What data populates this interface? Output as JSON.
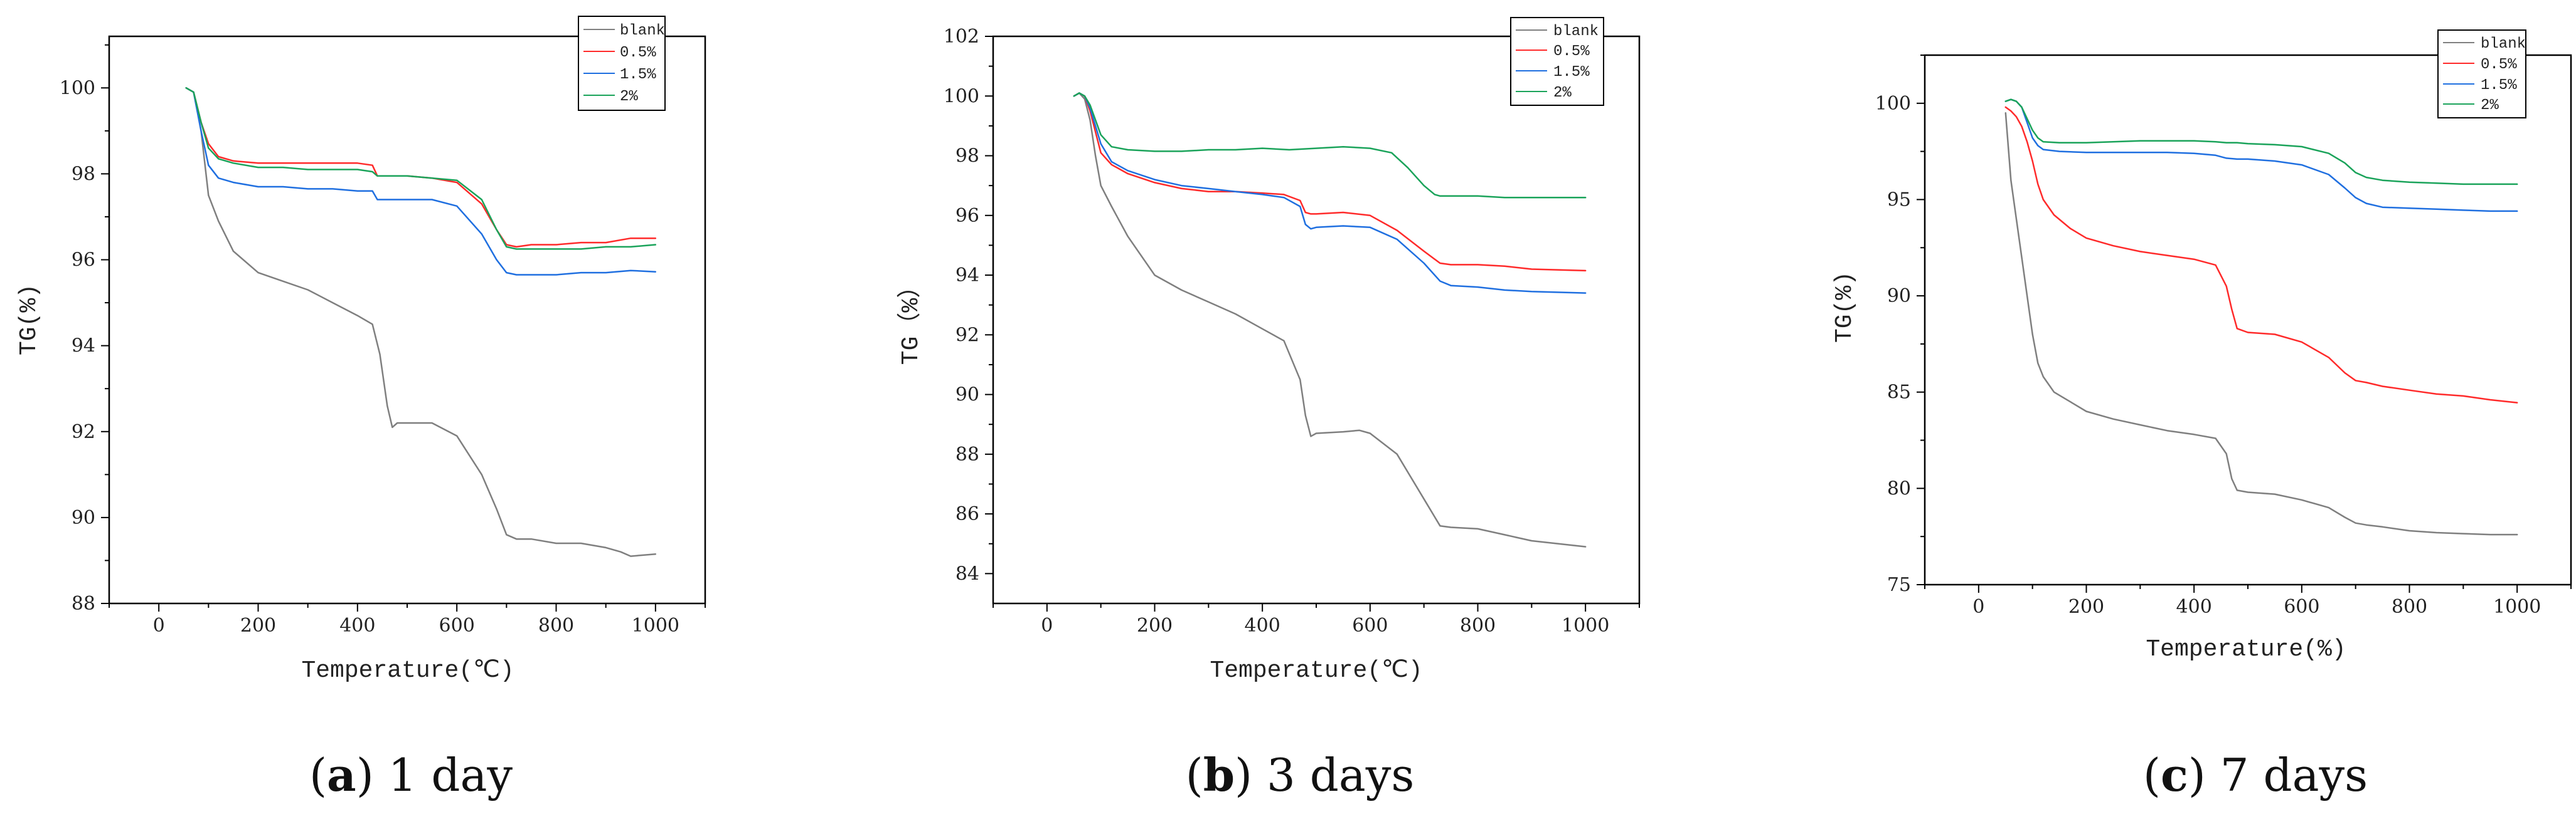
{
  "charts": [
    {
      "caption_letter": "a",
      "caption_text": " 1 day",
      "type": "line",
      "xlabel": "Temperature(℃)",
      "ylabel": "TG(%)",
      "xlim": [
        -100,
        1100
      ],
      "ylim": [
        88,
        101.2
      ],
      "xticks": [
        0,
        200,
        400,
        600,
        800,
        1000
      ],
      "xtick_labels": [
        "0",
        "200",
        "400",
        "600",
        "800",
        "1000"
      ],
      "yticks": [
        88,
        90,
        92,
        94,
        96,
        98,
        100
      ],
      "ytick_labels": [
        "88",
        "90",
        "92",
        "94",
        "96",
        "98",
        "100"
      ],
      "legend": {
        "position": "top-right",
        "labels": [
          "blank",
          "0.5%",
          "1.5%",
          "2%"
        ]
      },
      "series": [
        {
          "name": "blank",
          "color": "#7f7f7f",
          "x": [
            55,
            70,
            85,
            100,
            120,
            150,
            200,
            250,
            300,
            350,
            400,
            430,
            445,
            460,
            470,
            480,
            500,
            550,
            600,
            650,
            680,
            700,
            720,
            750,
            800,
            850,
            900,
            930,
            950,
            1000
          ],
          "y": [
            100,
            99.9,
            99,
            97.5,
            96.9,
            96.2,
            95.7,
            95.5,
            95.3,
            95.0,
            94.7,
            94.5,
            93.8,
            92.6,
            92.1,
            92.2,
            92.2,
            92.2,
            91.9,
            91.0,
            90.2,
            89.6,
            89.5,
            89.5,
            89.4,
            89.4,
            89.3,
            89.2,
            89.1,
            89.15
          ]
        },
        {
          "name": "0.5%",
          "color": "#ff2a2a",
          "x": [
            55,
            70,
            85,
            100,
            120,
            150,
            200,
            250,
            300,
            350,
            400,
            430,
            440,
            460,
            500,
            550,
            600,
            650,
            680,
            700,
            720,
            750,
            800,
            850,
            900,
            950,
            1000
          ],
          "y": [
            100,
            99.9,
            99.2,
            98.7,
            98.4,
            98.3,
            98.25,
            98.25,
            98.25,
            98.25,
            98.25,
            98.2,
            97.95,
            97.95,
            97.95,
            97.9,
            97.8,
            97.3,
            96.7,
            96.35,
            96.3,
            96.35,
            96.35,
            96.4,
            96.4,
            96.5,
            96.5
          ]
        },
        {
          "name": "1.5%",
          "color": "#1f6fe0",
          "x": [
            55,
            70,
            85,
            100,
            120,
            150,
            200,
            250,
            300,
            350,
            400,
            430,
            440,
            460,
            500,
            550,
            600,
            650,
            680,
            700,
            720,
            750,
            800,
            850,
            900,
            950,
            1000
          ],
          "y": [
            100,
            99.9,
            99.0,
            98.2,
            97.9,
            97.8,
            97.7,
            97.7,
            97.65,
            97.65,
            97.6,
            97.6,
            97.4,
            97.4,
            97.4,
            97.4,
            97.25,
            96.6,
            96.0,
            95.7,
            95.65,
            95.65,
            95.65,
            95.7,
            95.7,
            95.75,
            95.72
          ]
        },
        {
          "name": "2%",
          "color": "#1aa35a",
          "x": [
            55,
            70,
            85,
            100,
            120,
            150,
            200,
            250,
            300,
            350,
            400,
            430,
            440,
            460,
            500,
            550,
            600,
            650,
            680,
            700,
            720,
            750,
            800,
            850,
            900,
            950,
            1000
          ],
          "y": [
            100,
            99.9,
            99.2,
            98.6,
            98.35,
            98.25,
            98.15,
            98.15,
            98.1,
            98.1,
            98.1,
            98.05,
            97.95,
            97.95,
            97.95,
            97.9,
            97.85,
            97.4,
            96.7,
            96.3,
            96.25,
            96.25,
            96.25,
            96.25,
            96.3,
            96.3,
            96.35
          ]
        }
      ]
    },
    {
      "caption_letter": "b",
      "caption_text": " 3 days",
      "type": "line",
      "xlabel": "Temperature(℃)",
      "ylabel": "TG（%）",
      "xlim": [
        -100,
        1100
      ],
      "ylim": [
        83,
        102
      ],
      "xticks": [
        0,
        200,
        400,
        600,
        800,
        1000
      ],
      "xtick_labels": [
        "0",
        "200",
        "400",
        "600",
        "800",
        "1000"
      ],
      "yticks": [
        84,
        86,
        88,
        90,
        92,
        94,
        96,
        98,
        100,
        102
      ],
      "ytick_labels": [
        "84",
        "86",
        "88",
        "90",
        "92",
        "94",
        "96",
        "98",
        "100",
        "102"
      ],
      "legend": {
        "position": "top-right",
        "labels": [
          "blank",
          "0.5%",
          "1.5%",
          "2%"
        ]
      },
      "series": [
        {
          "name": "blank",
          "color": "#7f7f7f",
          "x": [
            50,
            60,
            70,
            80,
            90,
            100,
            120,
            150,
            200,
            250,
            300,
            350,
            400,
            440,
            470,
            480,
            490,
            500,
            550,
            580,
            600,
            650,
            700,
            730,
            750,
            800,
            850,
            900,
            1000
          ],
          "y": [
            100,
            100.1,
            99.9,
            99.2,
            98.0,
            97.0,
            96.3,
            95.3,
            94.0,
            93.5,
            93.1,
            92.7,
            92.2,
            91.8,
            90.5,
            89.3,
            88.6,
            88.7,
            88.75,
            88.8,
            88.7,
            88.0,
            86.5,
            85.6,
            85.55,
            85.5,
            85.3,
            85.1,
            84.9
          ]
        },
        {
          "name": "0.5%",
          "color": "#ff2a2a",
          "x": [
            50,
            60,
            70,
            80,
            90,
            100,
            120,
            150,
            200,
            250,
            300,
            350,
            400,
            440,
            470,
            480,
            490,
            500,
            550,
            600,
            650,
            700,
            730,
            750,
            800,
            850,
            900,
            1000
          ],
          "y": [
            100,
            100.1,
            100.0,
            99.5,
            98.8,
            98.1,
            97.7,
            97.4,
            97.1,
            96.9,
            96.8,
            96.8,
            96.75,
            96.7,
            96.5,
            96.1,
            96.05,
            96.05,
            96.1,
            96.0,
            95.5,
            94.8,
            94.4,
            94.35,
            94.35,
            94.3,
            94.2,
            94.15
          ]
        },
        {
          "name": "1.5%",
          "color": "#1f6fe0",
          "x": [
            50,
            60,
            70,
            80,
            90,
            100,
            120,
            150,
            200,
            250,
            300,
            350,
            400,
            440,
            470,
            480,
            490,
            500,
            550,
            600,
            650,
            700,
            730,
            750,
            800,
            850,
            900,
            1000
          ],
          "y": [
            100,
            100.1,
            100.0,
            99.6,
            99.0,
            98.4,
            97.8,
            97.5,
            97.2,
            97.0,
            96.9,
            96.8,
            96.7,
            96.6,
            96.3,
            95.7,
            95.55,
            95.6,
            95.65,
            95.6,
            95.2,
            94.4,
            93.8,
            93.65,
            93.6,
            93.5,
            93.45,
            93.4
          ]
        },
        {
          "name": "2%",
          "color": "#1aa35a",
          "x": [
            50,
            60,
            70,
            80,
            90,
            100,
            120,
            150,
            200,
            250,
            300,
            350,
            400,
            450,
            500,
            550,
            600,
            640,
            670,
            700,
            720,
            730,
            750,
            800,
            850,
            900,
            1000
          ],
          "y": [
            100,
            100.1,
            100.0,
            99.7,
            99.2,
            98.7,
            98.3,
            98.2,
            98.15,
            98.15,
            98.2,
            98.2,
            98.25,
            98.2,
            98.25,
            98.3,
            98.25,
            98.1,
            97.6,
            97.0,
            96.7,
            96.65,
            96.65,
            96.65,
            96.6,
            96.6,
            96.6
          ]
        }
      ]
    },
    {
      "caption_letter": "c",
      "caption_text": " 7 days",
      "type": "line",
      "xlabel": "Temperature(%)",
      "ylabel": "TG(%)",
      "xlim": [
        -100,
        1100
      ],
      "ylim": [
        75,
        102.5
      ],
      "xticks": [
        0,
        200,
        400,
        600,
        800,
        1000
      ],
      "xtick_labels": [
        "0",
        "200",
        "400",
        "600",
        "800",
        "1000"
      ],
      "yticks": [
        75,
        80,
        85,
        90,
        95,
        100
      ],
      "ytick_labels": [
        "75",
        "80",
        "85",
        "90",
        "95",
        "100"
      ],
      "legend": {
        "position": "top-right",
        "labels": [
          "blank",
          "0.5%",
          "1.5%",
          "2%"
        ]
      },
      "series": [
        {
          "name": "blank",
          "color": "#7f7f7f",
          "x": [
            50,
            60,
            70,
            80,
            90,
            100,
            110,
            120,
            140,
            170,
            200,
            250,
            300,
            350,
            400,
            440,
            460,
            470,
            480,
            500,
            550,
            600,
            650,
            680,
            700,
            720,
            750,
            800,
            850,
            900,
            950,
            1000
          ],
          "y": [
            99.5,
            96.0,
            94.0,
            92.0,
            90.0,
            88.0,
            86.5,
            85.8,
            85.0,
            84.5,
            84.0,
            83.6,
            83.3,
            83.0,
            82.8,
            82.6,
            81.8,
            80.5,
            79.9,
            79.8,
            79.7,
            79.4,
            79.0,
            78.5,
            78.2,
            78.1,
            78.0,
            77.8,
            77.7,
            77.65,
            77.6,
            77.6
          ]
        },
        {
          "name": "0.5%",
          "color": "#ff2a2a",
          "x": [
            50,
            60,
            70,
            80,
            90,
            100,
            110,
            120,
            140,
            170,
            200,
            250,
            300,
            350,
            400,
            440,
            460,
            470,
            480,
            500,
            550,
            600,
            650,
            680,
            700,
            720,
            750,
            800,
            850,
            900,
            950,
            1000
          ],
          "y": [
            99.8,
            99.6,
            99.3,
            98.8,
            98.0,
            97.0,
            95.8,
            95.0,
            94.2,
            93.5,
            93.0,
            92.6,
            92.3,
            92.1,
            91.9,
            91.6,
            90.5,
            89.3,
            88.3,
            88.1,
            88.0,
            87.6,
            86.8,
            86.0,
            85.6,
            85.5,
            85.3,
            85.1,
            84.9,
            84.8,
            84.6,
            84.45
          ]
        },
        {
          "name": "1.5%",
          "color": "#1f6fe0",
          "x": [
            50,
            60,
            70,
            80,
            90,
            100,
            110,
            120,
            150,
            200,
            250,
            300,
            350,
            400,
            440,
            460,
            480,
            500,
            550,
            600,
            650,
            680,
            700,
            720,
            750,
            800,
            850,
            900,
            950,
            1000
          ],
          "y": [
            100.1,
            100.2,
            100.1,
            99.8,
            99.0,
            98.2,
            97.8,
            97.6,
            97.5,
            97.45,
            97.45,
            97.45,
            97.45,
            97.4,
            97.3,
            97.15,
            97.1,
            97.1,
            97.0,
            96.8,
            96.3,
            95.6,
            95.1,
            94.8,
            94.6,
            94.55,
            94.5,
            94.45,
            94.4,
            94.4
          ]
        },
        {
          "name": "2%",
          "color": "#1aa35a",
          "x": [
            50,
            60,
            70,
            80,
            90,
            100,
            110,
            120,
            150,
            200,
            250,
            300,
            350,
            400,
            440,
            460,
            480,
            500,
            550,
            600,
            650,
            680,
            700,
            720,
            750,
            800,
            850,
            900,
            950,
            1000
          ],
          "y": [
            100.1,
            100.2,
            100.1,
            99.8,
            99.2,
            98.6,
            98.2,
            98.0,
            97.95,
            97.95,
            98.0,
            98.05,
            98.05,
            98.05,
            98.0,
            97.95,
            97.95,
            97.9,
            97.85,
            97.75,
            97.4,
            96.9,
            96.4,
            96.15,
            96.0,
            95.9,
            95.85,
            95.8,
            95.8,
            95.8
          ]
        }
      ]
    }
  ]
}
